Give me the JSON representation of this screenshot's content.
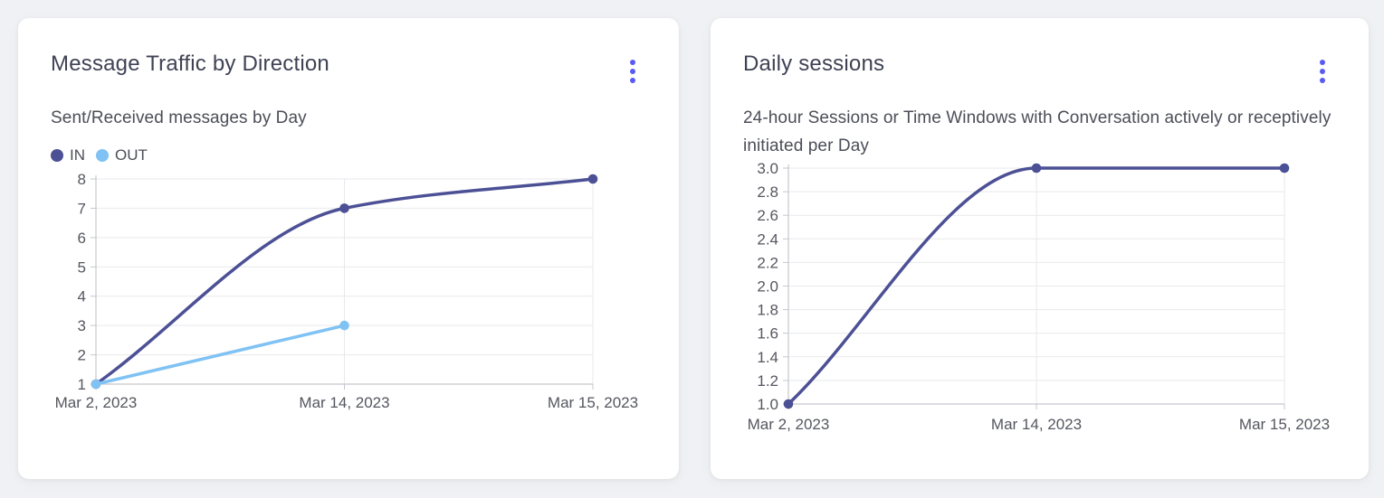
{
  "theme": {
    "page_background": "#f0f1f4",
    "card_background": "#ffffff",
    "menu_icon_color": "#5a5af2",
    "grid_color": "#e8e9ec",
    "axis_color": "#c5c7cd",
    "tick_label_color": "#55575f",
    "series_dark_indigo": "#4c5095",
    "series_light_blue": "#7fc2f3"
  },
  "cards": [
    {
      "title": "Message Traffic by Direction",
      "subtitle": "Sent/Received messages by Day",
      "menu_icon": "kebab-menu-icon",
      "legend": [
        {
          "label": "IN",
          "color": "#4c5095"
        },
        {
          "label": "OUT",
          "color": "#7fc2f3"
        }
      ],
      "chart_data": {
        "type": "line",
        "title": "Message Traffic by Direction",
        "subtitle": "Sent/Received messages by Day",
        "categories": [
          "Mar 2, 2023",
          "Mar 14, 2023",
          "Mar 15, 2023"
        ],
        "series": [
          {
            "name": "IN",
            "color": "#4c5095",
            "values": [
              1,
              7,
              8
            ]
          },
          {
            "name": "OUT",
            "color": "#7fc2f3",
            "values": [
              1,
              3,
              null
            ]
          }
        ],
        "ylim": [
          1,
          8
        ],
        "yticks": [
          1,
          2,
          3,
          4,
          5,
          6,
          7,
          8
        ],
        "ytick_labels": [
          "1",
          "2",
          "3",
          "4",
          "5",
          "6",
          "7",
          "8"
        ],
        "grid": true,
        "legend_position": "top-left",
        "curve": "monotone"
      }
    },
    {
      "title": "Daily sessions",
      "subtitle": "24-hour Sessions or Time Windows with Conversation actively or receptively initiated per Day",
      "menu_icon": "kebab-menu-icon",
      "legend": [],
      "chart_data": {
        "type": "line",
        "title": "Daily sessions",
        "subtitle": "24-hour Sessions or Time Windows with Conversation actively or receptively initiated per Day",
        "categories": [
          "Mar 2, 2023",
          "Mar 14, 2023",
          "Mar 15, 2023"
        ],
        "series": [
          {
            "name": "Daily sessions",
            "color": "#4c5095",
            "values": [
              1,
              3,
              3
            ]
          }
        ],
        "ylim": [
          1,
          3
        ],
        "yticks": [
          1,
          1.2,
          1.4,
          1.6,
          1.8,
          2,
          2.2,
          2.4,
          2.6,
          2.8,
          3
        ],
        "ytick_labels": [
          "1.0",
          "1.2",
          "1.4",
          "1.6",
          "1.8",
          "2.0",
          "2.2",
          "2.4",
          "2.6",
          "2.8",
          "3.0"
        ],
        "grid": true,
        "legend_position": "none",
        "curve": "monotone"
      }
    }
  ]
}
